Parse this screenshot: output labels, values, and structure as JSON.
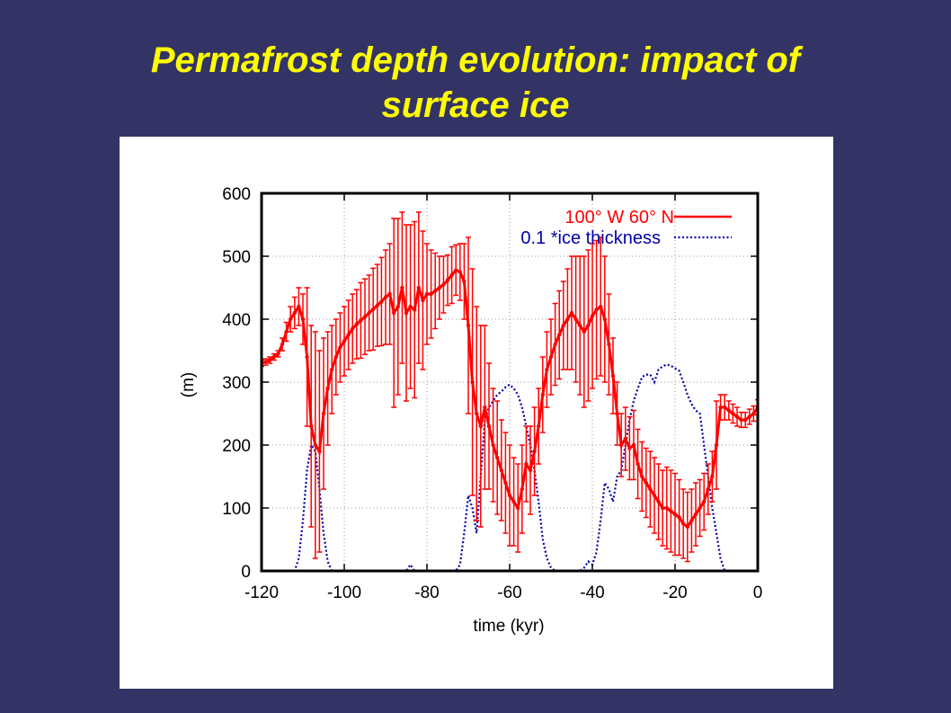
{
  "slide": {
    "title_line1": "Permafrost depth evolution: impact of",
    "title_line2": "surface ice"
  },
  "chart_data": {
    "type": "line",
    "xlabel": "time (kyr)",
    "ylabel": "(m)",
    "xlim": [
      -120,
      0
    ],
    "ylim": [
      0,
      600
    ],
    "xticks": [
      -120,
      -100,
      -80,
      -60,
      -40,
      -20,
      0
    ],
    "yticks": [
      0,
      100,
      200,
      300,
      400,
      500,
      600
    ],
    "grid": true,
    "legend_position": "top-right",
    "colors": {
      "series1": "#ff0000",
      "series2": "#0000aa"
    },
    "series": [
      {
        "name": "100° W 60° N",
        "style": "solid line with points and error bars",
        "x": [
          -120,
          -119,
          -118,
          -117,
          -116,
          -115,
          -114,
          -113,
          -112,
          -111,
          -110,
          -109,
          -108,
          -107,
          -106,
          -105,
          -104,
          -103,
          -102,
          -101,
          -100,
          -99,
          -98,
          -97,
          -96,
          -95,
          -94,
          -93,
          -92,
          -91,
          -90,
          -89,
          -88,
          -87,
          -86,
          -85,
          -84,
          -83,
          -82,
          -81,
          -80,
          -79,
          -78,
          -77,
          -76,
          -75,
          -74,
          -73,
          -72,
          -71,
          -70,
          -69,
          -68,
          -67,
          -66,
          -65,
          -64,
          -63,
          -62,
          -61,
          -60,
          -59,
          -58,
          -57,
          -56,
          -55,
          -54,
          -53,
          -52,
          -51,
          -50,
          -49,
          -48,
          -47,
          -46,
          -45,
          -44,
          -43,
          -42,
          -41,
          -40,
          -39,
          -38,
          -37,
          -36,
          -35,
          -34,
          -33,
          -32,
          -31,
          -30,
          -29,
          -28,
          -27,
          -26,
          -25,
          -24,
          -23,
          -22,
          -21,
          -20,
          -19,
          -18,
          -17,
          -16,
          -15,
          -14,
          -13,
          -12,
          -11,
          -10,
          -9,
          -8,
          -7,
          -6,
          -5,
          -4,
          -3,
          -2,
          -1,
          0
        ],
        "y": [
          330,
          332,
          335,
          340,
          345,
          360,
          380,
          400,
          410,
          420,
          400,
          340,
          230,
          200,
          190,
          250,
          290,
          320,
          340,
          355,
          365,
          375,
          385,
          392,
          398,
          404,
          410,
          416,
          422,
          428,
          435,
          440,
          410,
          420,
          450,
          410,
          420,
          415,
          450,
          430,
          440,
          440,
          445,
          450,
          455,
          462,
          470,
          478,
          475,
          460,
          390,
          300,
          250,
          230,
          260,
          230,
          200,
          180,
          160,
          140,
          120,
          110,
          100,
          130,
          170,
          160,
          190,
          230,
          280,
          320,
          340,
          360,
          375,
          390,
          400,
          410,
          400,
          390,
          380,
          390,
          405,
          415,
          420,
          400,
          360,
          310,
          250,
          200,
          210,
          195,
          200,
          170,
          150,
          140,
          130,
          120,
          110,
          100,
          100,
          95,
          90,
          85,
          75,
          70,
          80,
          90,
          100,
          110,
          130,
          150,
          200,
          260,
          260,
          255,
          250,
          245,
          240,
          240,
          245,
          250,
          260
        ],
        "err": [
          5,
          5,
          5,
          5,
          5,
          10,
          15,
          20,
          25,
          30,
          40,
          110,
          160,
          180,
          160,
          120,
          90,
          70,
          60,
          55,
          55,
          55,
          55,
          55,
          60,
          60,
          60,
          65,
          65,
          70,
          75,
          80,
          150,
          140,
          120,
          140,
          130,
          140,
          120,
          110,
          80,
          70,
          60,
          50,
          45,
          40,
          45,
          40,
          45,
          60,
          140,
          180,
          170,
          160,
          130,
          100,
          90,
          90,
          80,
          80,
          80,
          70,
          70,
          70,
          60,
          70,
          70,
          60,
          60,
          60,
          60,
          65,
          70,
          70,
          80,
          90,
          100,
          110,
          120,
          120,
          115,
          110,
          110,
          100,
          80,
          60,
          50,
          50,
          50,
          50,
          55,
          55,
          55,
          55,
          60,
          60,
          60,
          60,
          65,
          65,
          65,
          60,
          55,
          55,
          50,
          50,
          45,
          45,
          40,
          40,
          70,
          20,
          20,
          15,
          15,
          15,
          12,
          12,
          12,
          12,
          12
        ]
      },
      {
        "name": "0.1 *ice thickness",
        "style": "dotted line",
        "x": [
          -120,
          -112,
          -111,
          -110,
          -109,
          -108,
          -107,
          -106,
          -105,
          -104,
          -103,
          -102,
          -85,
          -84,
          -83,
          -73,
          -72,
          -71,
          -70,
          -69,
          -68,
          -67,
          -66,
          -65,
          -64,
          -63,
          -62,
          -61,
          -60,
          -59,
          -58,
          -57,
          -56,
          -55,
          -54,
          -53,
          -52,
          -51,
          -50,
          -49,
          -48,
          -43,
          -42,
          -41,
          -40,
          -39,
          -38,
          -37,
          -36,
          -35,
          -34,
          -33,
          -32,
          -31,
          -30,
          -29,
          -28,
          -27,
          -26,
          -25,
          -24,
          -23,
          -22,
          -21,
          -20,
          -19,
          -18,
          -17,
          -16,
          -15,
          -14,
          -13,
          -12,
          -11,
          -10,
          -9,
          -8,
          -7,
          0
        ],
        "y": [
          0,
          0,
          20,
          80,
          160,
          200,
          190,
          130,
          60,
          15,
          0,
          0,
          0,
          10,
          0,
          0,
          10,
          60,
          120,
          100,
          60,
          150,
          240,
          260,
          270,
          280,
          285,
          292,
          296,
          290,
          280,
          260,
          230,
          200,
          160,
          110,
          50,
          20,
          5,
          0,
          0,
          0,
          5,
          15,
          10,
          30,
          80,
          140,
          130,
          110,
          150,
          160,
          200,
          240,
          270,
          290,
          308,
          312,
          312,
          300,
          320,
          325,
          328,
          326,
          322,
          318,
          300,
          280,
          265,
          255,
          250,
          200,
          150,
          100,
          60,
          20,
          0,
          0,
          0
        ]
      }
    ]
  }
}
